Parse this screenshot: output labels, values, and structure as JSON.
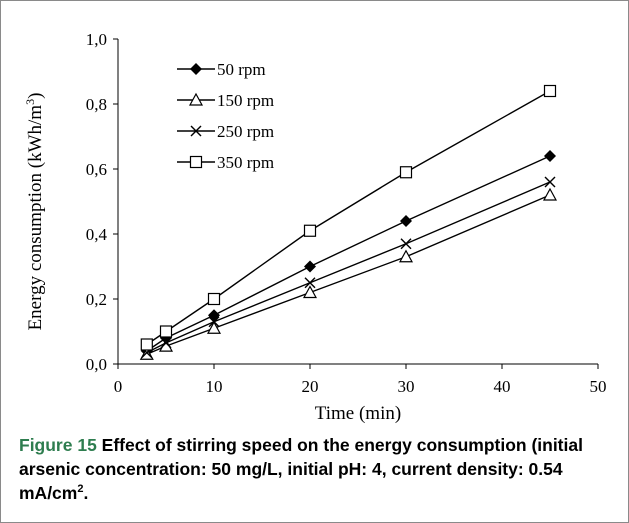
{
  "chart_data": {
    "type": "line",
    "x": [
      3,
      5,
      10,
      20,
      30,
      45
    ],
    "series": [
      {
        "name": "50 rpm",
        "marker": "diamond",
        "values": [
          0.04,
          0.08,
          0.15,
          0.3,
          0.44,
          0.64
        ]
      },
      {
        "name": "150 rpm",
        "marker": "triangle",
        "values": [
          0.03,
          0.055,
          0.11,
          0.22,
          0.33,
          0.52
        ]
      },
      {
        "name": "250 rpm",
        "marker": "x",
        "values": [
          0.035,
          0.065,
          0.13,
          0.25,
          0.37,
          0.56
        ]
      },
      {
        "name": "350 rpm",
        "marker": "square",
        "values": [
          0.06,
          0.1,
          0.2,
          0.41,
          0.59,
          0.84
        ]
      }
    ],
    "xlabel": "Time (min)",
    "ylabel_main": "Energy consumption (kWh/m",
    "ylabel_sup": "3",
    "ylabel_end": ")",
    "xlim": [
      0,
      50
    ],
    "ylim": [
      0,
      1.0
    ],
    "xticks": [
      "0",
      "10",
      "20",
      "30",
      "40",
      "50"
    ],
    "yticks": [
      "0,0",
      "0,2",
      "0,4",
      "0,6",
      "0,8",
      "1,0"
    ],
    "grid": false,
    "legend_position": "top-left",
    "line_color": "#000000"
  },
  "caption": {
    "label": "Figure 15",
    "text_main": " Effect of stirring speed on the energy consumption (initial arsenic concentration: 50 mg/L, initial pH: 4, current density: 0.54 mA/cm",
    "text_sup": "2",
    "text_end": "."
  }
}
